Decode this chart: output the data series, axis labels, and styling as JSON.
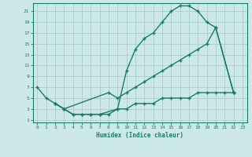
{
  "xlabel": "Humidex (Indice chaleur)",
  "bg_color": "#cce8e8",
  "grid_color": "#aacccc",
  "line_color": "#1a7a6e",
  "xlim": [
    -0.5,
    23.5
  ],
  "ylim": [
    0.5,
    22.5
  ],
  "xticks": [
    0,
    1,
    2,
    3,
    4,
    5,
    6,
    7,
    8,
    9,
    10,
    11,
    12,
    13,
    14,
    15,
    16,
    17,
    18,
    19,
    20,
    21,
    22,
    23
  ],
  "yticks": [
    1,
    3,
    5,
    7,
    9,
    11,
    13,
    15,
    17,
    19,
    21
  ],
  "line1_x": [
    0,
    1,
    2,
    3,
    4,
    5,
    6,
    7,
    9,
    10,
    11,
    12,
    13,
    14,
    15,
    16,
    17,
    18,
    19,
    20,
    22
  ],
  "line1_y": [
    7,
    5,
    4,
    3,
    2,
    2,
    2,
    2,
    3,
    10,
    14,
    16,
    17,
    19,
    21,
    22,
    22,
    21,
    19,
    18,
    6
  ],
  "line2_x": [
    2,
    3,
    8,
    9,
    10,
    11,
    12,
    13,
    14,
    15,
    16,
    17,
    18,
    19,
    20,
    22
  ],
  "line2_y": [
    4,
    3,
    6,
    5,
    6,
    7,
    8,
    9,
    10,
    11,
    12,
    13,
    14,
    15,
    18,
    6
  ],
  "line3_x": [
    2,
    3,
    4,
    5,
    6,
    7,
    8,
    9,
    10,
    11,
    12,
    13,
    14,
    15,
    16,
    17,
    18,
    19,
    20,
    21,
    22
  ],
  "line3_y": [
    4,
    3,
    2,
    2,
    2,
    2,
    2,
    3,
    3,
    4,
    4,
    4,
    5,
    5,
    5,
    5,
    6,
    6,
    6,
    6,
    6
  ]
}
